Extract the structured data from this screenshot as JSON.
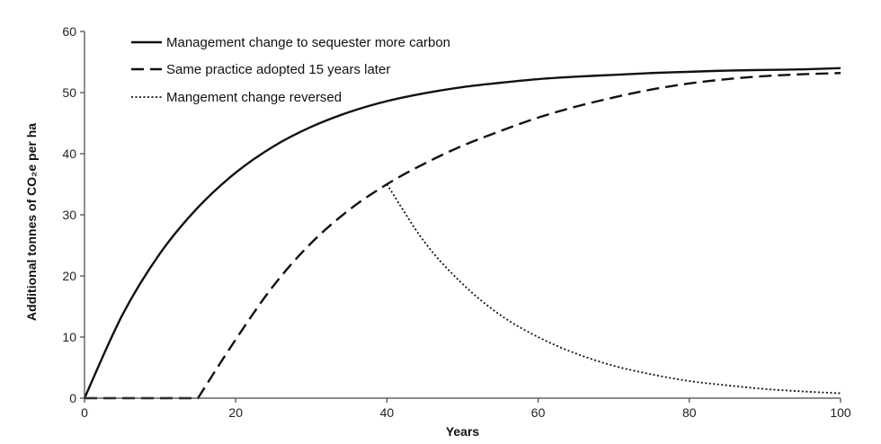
{
  "chart_data": {
    "type": "line",
    "title": "",
    "xlabel": "Years",
    "ylabel": "Additional tonnes of CO₂e per ha",
    "xlim": [
      0,
      100
    ],
    "ylim": [
      0,
      60
    ],
    "xticks": [
      0,
      20,
      40,
      60,
      80,
      100
    ],
    "yticks": [
      0,
      10,
      20,
      30,
      40,
      50,
      60
    ],
    "grid": false,
    "legend_position": "top-left",
    "series": [
      {
        "name": "Management change to sequester more carbon",
        "style": "solid",
        "x": [
          0,
          5,
          10,
          15,
          20,
          25,
          30,
          35,
          40,
          45,
          50,
          55,
          60,
          65,
          70,
          75,
          80,
          85,
          90,
          95,
          100
        ],
        "y": [
          0,
          13.6,
          23.7,
          31.2,
          36.9,
          41.2,
          44.4,
          46.8,
          48.6,
          49.9,
          50.9,
          51.6,
          52.2,
          52.6,
          52.9,
          53.2,
          53.4,
          53.6,
          53.7,
          53.8,
          54.0
        ]
      },
      {
        "name": "Same practice adopted 15 years later",
        "style": "dashed",
        "x": [
          0,
          15,
          20,
          25,
          30,
          35,
          40,
          45,
          50,
          55,
          60,
          65,
          70,
          75,
          80,
          85,
          90,
          95,
          100
        ],
        "y": [
          0,
          0,
          9.6,
          18.4,
          25.4,
          30.8,
          35.0,
          38.4,
          41.3,
          43.7,
          45.9,
          47.7,
          49.2,
          50.5,
          51.5,
          52.2,
          52.7,
          53.0,
          53.2
        ]
      },
      {
        "name": "Mangement change reversed",
        "style": "dotted",
        "x": [
          40,
          45,
          50,
          55,
          60,
          65,
          70,
          75,
          80,
          85,
          90,
          95,
          100
        ],
        "y": [
          35.0,
          25.5,
          18.7,
          13.6,
          10.0,
          7.3,
          5.3,
          3.9,
          2.8,
          2.1,
          1.5,
          1.1,
          0.8
        ]
      }
    ]
  }
}
